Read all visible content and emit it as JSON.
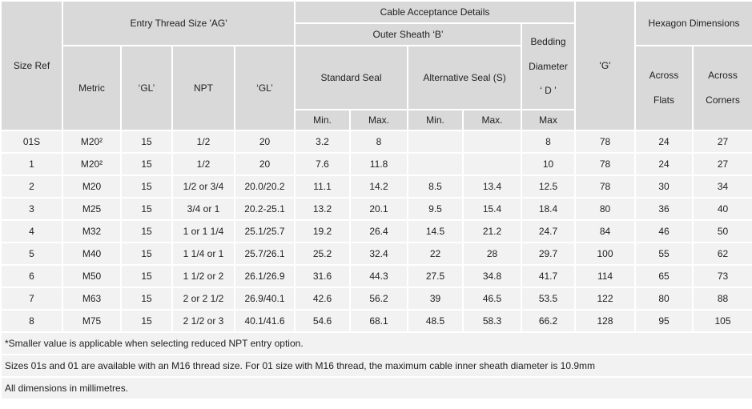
{
  "table": {
    "header": {
      "size_ref": "Size Ref",
      "entry_thread": "Entry Thread Size 'AG'",
      "cable_acceptance": "Cable Acceptance Details",
      "outer_sheath": "Outer Sheath ‘B’",
      "standard_seal": "Standard Seal",
      "alternative_seal": "Alternative Seal (S)",
      "bedding_diameter": "Bedding\nDiameter\n‘ D ’",
      "g": "'G'",
      "hexagon_dimensions": "Hexagon Dimensions",
      "metric": "Metric",
      "gl_metric": "‘GL’",
      "npt": "NPT",
      "gl_npt": "‘GL’",
      "std_min": "Min.",
      "std_max": "Max.",
      "alt_min": "Min.",
      "alt_max": "Max.",
      "bedding_max": "Max",
      "across_flats": "Across\nFlats",
      "across_corners": "Across\nCorners"
    },
    "columns": [
      "size_ref",
      "metric",
      "gl_metric",
      "npt",
      "gl_npt",
      "std_min",
      "std_max",
      "alt_min",
      "alt_max",
      "bedding_max",
      "g",
      "across_flats",
      "across_corners"
    ],
    "rows": [
      [
        "01S",
        "M20²",
        "15",
        "1/2",
        "20",
        "3.2",
        "8",
        "",
        "",
        "8",
        "78",
        "24",
        "27"
      ],
      [
        "1",
        "M20²",
        "15",
        "1/2",
        "20",
        "7.6",
        "11.8",
        "",
        "",
        "10",
        "78",
        "24",
        "27"
      ],
      [
        "2",
        "M20",
        "15",
        "1/2 or 3/4",
        "20.0/20.2",
        "11.1",
        "14.2",
        "8.5",
        "13.4",
        "12.5",
        "78",
        "30",
        "34"
      ],
      [
        "3",
        "M25",
        "15",
        "3/4 or 1",
        "20.2-25.1",
        "13.2",
        "20.1",
        "9.5",
        "15.4",
        "18.4",
        "80",
        "36",
        "40"
      ],
      [
        "4",
        "M32",
        "15",
        "1 or 1 1/4",
        "25.1/25.7",
        "19.2",
        "26.4",
        "14.5",
        "21.2",
        "24.7",
        "84",
        "46",
        "50"
      ],
      [
        "5",
        "M40",
        "15",
        "1 1/4 or 1",
        "25.7/26.1",
        "25.2",
        "32.4",
        "22",
        "28",
        "29.7",
        "100",
        "55",
        "62"
      ],
      [
        "6",
        "M50",
        "15",
        "1 1/2 or 2",
        "26.1/26.9",
        "31.6",
        "44.3",
        "27.5",
        "34.8",
        "41.7",
        "114",
        "65",
        "73"
      ],
      [
        "7",
        "M63",
        "15",
        "2 or 2 1/2",
        "26.9/40.1",
        "42.6",
        "56.2",
        "39",
        "46.5",
        "53.5",
        "122",
        "80",
        "88"
      ],
      [
        "8",
        "M75",
        "15",
        "2 1/2 or 3",
        "40.1/41.6",
        "54.6",
        "68.1",
        "48.5",
        "58.3",
        "66.2",
        "128",
        "95",
        "105"
      ]
    ],
    "notes": [
      "*Smaller value is applicable when selecting reduced NPT entry option.",
      "Sizes 01s and 01 are available with an M16 thread size. For 01 size with M16 thread, the maximum cable inner sheath diameter is 10.9mm",
      "All dimensions in millimetres."
    ]
  },
  "colors": {
    "header_bg": "#d9d9d9",
    "row_bg": "#f2f2f2",
    "grid": "#ffffff",
    "text": "#1f1f1f"
  }
}
